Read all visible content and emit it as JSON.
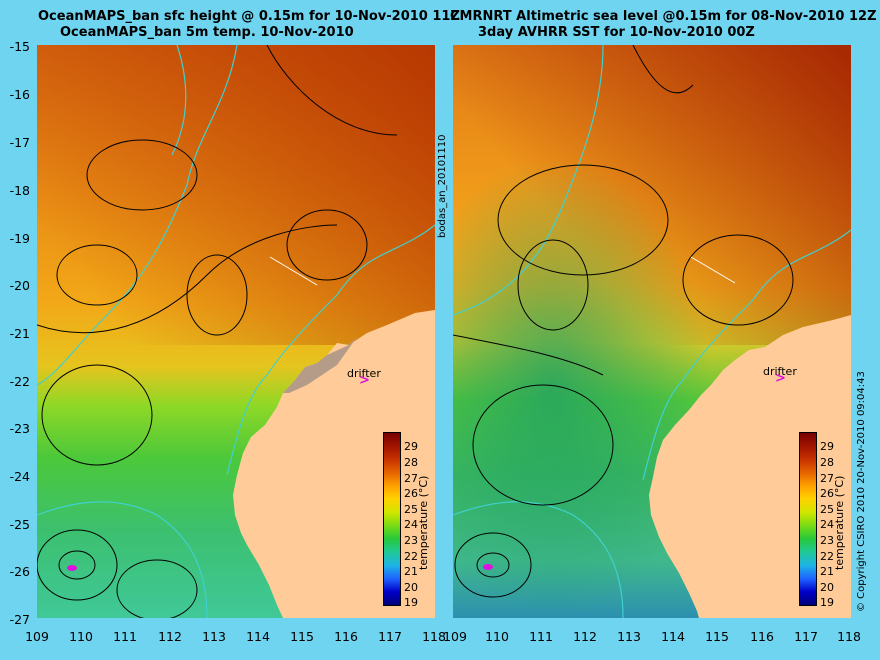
{
  "left_panel": {
    "title_line1": "OceanMAPS_ban sfc height @ 0.15m for 10-Nov-2010 11Z",
    "title_line2": "OceanMAPS_ban 5m temp. 10-Nov-2010",
    "drifter_label": "drifter",
    "colorbar_label": "temperature (°C)"
  },
  "right_panel": {
    "title_line1": "CMRNRT Altimetric sea level  @0.15m  for 08-Nov-2010 12Z",
    "title_line2": "3day AVHRR SST for 10-Nov-2010 00Z",
    "drifter_label": "drifter",
    "colorbar_label": "temperature (°C)"
  },
  "side_label": "bodas_an_20101110",
  "copyright": "© Copyright CSIRO 2010   20-Nov-2010 09:04:43",
  "y_ticks": [
    "-15",
    "-16",
    "-17",
    "-18",
    "-19",
    "-20",
    "-21",
    "-22",
    "-23",
    "-24",
    "-25",
    "-26",
    "-27"
  ],
  "x_ticks": [
    "109",
    "110",
    "111",
    "112",
    "113",
    "114",
    "115",
    "116",
    "117",
    "118"
  ],
  "right_x_ticks": [
    "109",
    "110",
    "111",
    "112",
    "113",
    "114",
    "115",
    "116",
    "117",
    "118"
  ],
  "colorbar_ticks": [
    "29",
    "28",
    "27",
    "26",
    "25",
    "24",
    "23",
    "22",
    "21",
    "20",
    "19"
  ],
  "colors": {
    "land": "#ffcc99",
    "frame": "#6fd4f0",
    "contour": "#000000",
    "bathymetry": "#40d0d0",
    "drifter_marker": "#e010e0"
  },
  "colorbar_colors": [
    "#00007a",
    "#0000c8",
    "#1e64ff",
    "#1eb4e6",
    "#20c896",
    "#28c83c",
    "#78dc14",
    "#d2e600",
    "#ffd200",
    "#ffa000",
    "#e66400",
    "#c83200",
    "#a01400",
    "#780000"
  ]
}
